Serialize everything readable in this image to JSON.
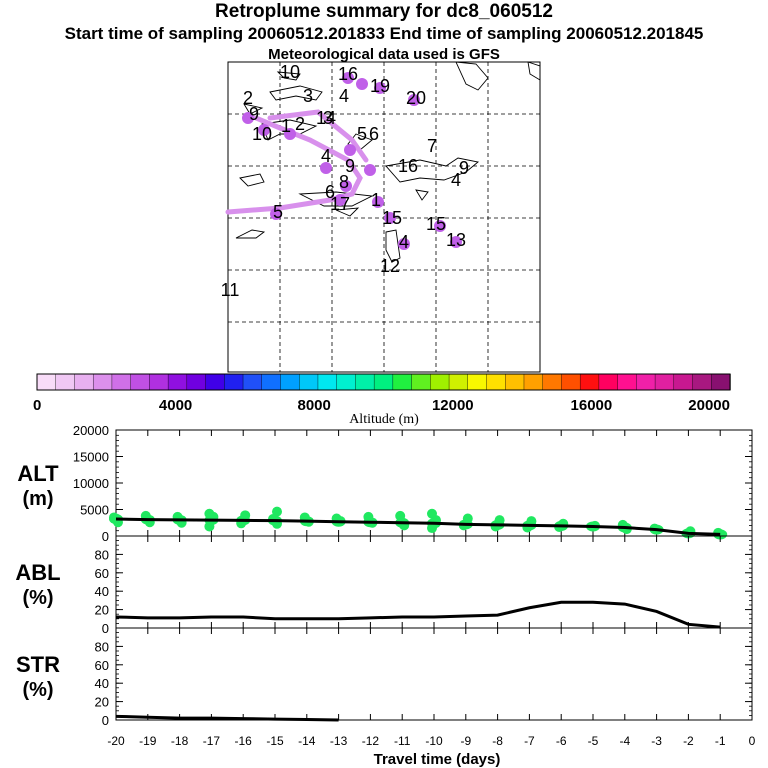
{
  "titles": {
    "main": "Retroplume summary for dc8_060512",
    "sampling": "Start time of sampling 20060512.201833      End time of sampling 20060512.201845",
    "met": "Meteorological data used is GFS"
  },
  "colorbar": {
    "label": "Altitude (m)",
    "ticks": [
      "0",
      "4000",
      "8000",
      "12000",
      "16000",
      "20000"
    ],
    "colors": [
      "#f8dcf8",
      "#f0c8f4",
      "#e8b0f0",
      "#dc90ec",
      "#d070e8",
      "#c050e4",
      "#b030e0",
      "#9010e0",
      "#7000e0",
      "#4000e8",
      "#2020f0",
      "#2050f8",
      "#1070ff",
      "#00a0ff",
      "#00c8f8",
      "#00e8f0",
      "#00f0d0",
      "#00f0a8",
      "#00f080",
      "#20f040",
      "#60f020",
      "#a0f000",
      "#d0f000",
      "#f8f800",
      "#ffe000",
      "#ffc000",
      "#ffa000",
      "#ff7800",
      "#ff5000",
      "#ff1010",
      "#ff0060",
      "#ff1090",
      "#f020a8",
      "#e020a0",
      "#c81890",
      "#a81880",
      "#881070"
    ]
  },
  "map_labels": [
    "10",
    "16",
    "19",
    "20",
    "2",
    "3",
    "4",
    "5",
    "6",
    "7",
    "9",
    "4",
    "10",
    "4",
    "1",
    "16",
    "15",
    "4",
    "13",
    "12",
    "11",
    "5",
    "6",
    "9",
    "8",
    "17",
    "1",
    "9",
    "15",
    "14",
    "2",
    "3"
  ],
  "chart_data": [
    {
      "type": "scatter",
      "title": "ALT (m)",
      "panel_label_1": "ALT",
      "panel_label_2": "(m)",
      "ylim": [
        0,
        20000
      ],
      "y_ticks": [
        "20000",
        "15000",
        "10000",
        "5000",
        "0"
      ],
      "series": [
        {
          "name": "median altitude",
          "x": [
            -20,
            -19,
            -18,
            -17,
            -16,
            -15,
            -14,
            -13,
            -12,
            -11,
            -10,
            -9,
            -8,
            -7,
            -6,
            -5,
            -4,
            -3,
            -2,
            -1
          ],
          "values": [
            3200,
            3100,
            3050,
            3000,
            2950,
            2900,
            2800,
            2700,
            2600,
            2500,
            2400,
            2200,
            2100,
            2000,
            1900,
            1800,
            1600,
            1200,
            500,
            300
          ]
        },
        {
          "name": "particle altitudes",
          "x": [
            -20,
            -20,
            -19,
            -19,
            -18,
            -18,
            -17,
            -17,
            -17,
            -16,
            -16,
            -15,
            -15,
            -15,
            -14,
            -14,
            -13,
            -13,
            -12,
            -12,
            -11,
            -11,
            -10,
            -10,
            -10,
            -9,
            -9,
            -8,
            -8,
            -7,
            -7,
            -6,
            -6,
            -5,
            -4,
            -4,
            -3,
            -2,
            -1
          ],
          "values": [
            3500,
            2600,
            3800,
            2600,
            3600,
            2500,
            4200,
            3600,
            1800,
            3900,
            2400,
            4600,
            3200,
            2300,
            3500,
            2700,
            3300,
            2800,
            3600,
            2500,
            3800,
            2000,
            4200,
            3000,
            1500,
            3300,
            2000,
            3000,
            1800,
            2800,
            1600,
            2300,
            1700,
            1900,
            2100,
            1300,
            1400,
            900,
            600
          ]
        }
      ]
    },
    {
      "type": "line",
      "title": "ABL (%)",
      "panel_label_1": "ABL",
      "panel_label_2": "(%)",
      "ylim": [
        0,
        100
      ],
      "y_ticks": [
        "80",
        "60",
        "40",
        "20",
        "0"
      ],
      "x": [
        -20,
        -19,
        -18,
        -17,
        -16,
        -15,
        -14,
        -13,
        -12,
        -11,
        -10,
        -9,
        -8,
        -7,
        -6,
        -5,
        -4,
        -3,
        -2,
        -1
      ],
      "values": [
        12,
        11,
        11,
        12,
        12,
        10,
        10,
        10,
        11,
        12,
        12,
        13,
        14,
        22,
        28,
        28,
        26,
        18,
        4,
        1
      ]
    },
    {
      "type": "line",
      "title": "STR (%)",
      "panel_label_1": "STR",
      "panel_label_2": "(%)",
      "ylim": [
        0,
        100
      ],
      "y_ticks": [
        "80",
        "60",
        "40",
        "20",
        "0"
      ],
      "x": [
        -20,
        -19,
        -18,
        -17,
        -16,
        -15,
        -14,
        -13
      ],
      "values": [
        4,
        3,
        2,
        2,
        1.5,
        1,
        0.5,
        0
      ]
    }
  ],
  "x_axis": {
    "label": "Travel time (days)",
    "ticks": [
      "-20",
      "-19",
      "-18",
      "-17",
      "-16",
      "-15",
      "-14",
      "-13",
      "-12",
      "-11",
      "-10",
      "-9",
      "-8",
      "-7",
      "-6",
      "-5",
      "-4",
      "-3",
      "-2",
      "-1",
      "0"
    ]
  }
}
